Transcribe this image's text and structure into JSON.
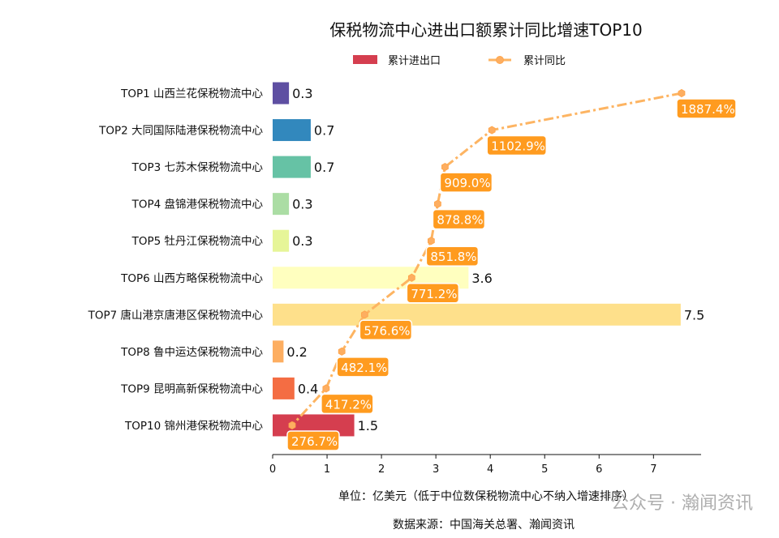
{
  "chart_data": {
    "type": "bar",
    "orientation": "horizontal",
    "title": "保税物流中心进出口额累计同比增速TOP10",
    "categories": [
      "TOP1 山西兰花保税物流中心",
      "TOP2 大同国际陆港保税物流中心",
      "TOP3 七苏木保税物流中心",
      "TOP4 盘锦港保税物流中心",
      "TOP5 牡丹江保税物流中心",
      "TOP6 山西方略保税物流中心",
      "TOP7 唐山港京唐港区保税物流中心",
      "TOP8 鲁中运达保税物流中心",
      "TOP9 昆明高新保税物流中心",
      "TOP10 锦州港保税物流中心"
    ],
    "series": [
      {
        "name": "累计进出口",
        "type": "bar",
        "values": [
          0.3,
          0.7,
          0.7,
          0.3,
          0.3,
          3.6,
          7.5,
          0.2,
          0.4,
          1.5
        ],
        "labels": [
          "0.3",
          "0.7",
          "0.7",
          "0.3",
          "0.3",
          "3.6",
          "7.5",
          "0.2",
          "0.4",
          "1.5"
        ],
        "colors": [
          "#5e4fa2",
          "#3288bd",
          "#66c2a5",
          "#abdda4",
          "#e6f598",
          "#ffffbf",
          "#fee08b",
          "#fdae61",
          "#f46d43",
          "#d53e4f"
        ]
      },
      {
        "name": "累计同比",
        "type": "line",
        "values": [
          1887.4,
          1102.9,
          909.0,
          878.8,
          851.8,
          771.2,
          576.6,
          482.1,
          417.2,
          276.7
        ],
        "labels": [
          "1887.4%",
          "1102.9%",
          "909.0%",
          "878.8%",
          "851.8%",
          "771.2%",
          "576.6%",
          "482.1%",
          "417.2%",
          "276.7%"
        ],
        "color": "#fdb462",
        "label_bg": "#ff9b1f"
      }
    ],
    "xlabel": "单位：亿美元（低于中位数保税物流中心不纳入增速排序）",
    "xlim": [
      0,
      7.875
    ],
    "xticks": [
      "0",
      "1",
      "2",
      "3",
      "4",
      "5",
      "6",
      "7"
    ],
    "secondary_xlim": [
      196.2,
      1968
    ],
    "legend": {
      "placement": "top-center",
      "items": [
        "累计进出口",
        "累计同比"
      ],
      "bar_swatch_color": "#d53e4f"
    },
    "grid": false,
    "source": "数据来源：中国海关总署、瀚闻资讯"
  },
  "watermark": "公众号 · 瀚闻资讯"
}
